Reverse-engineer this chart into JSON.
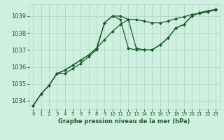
{
  "title": "Graphe pression niveau de la mer (hPa)",
  "background_color": "#cff0e0",
  "grid_color": "#b0d8c4",
  "line_color": "#1a5c2a",
  "marker_color": "#1a5c2a",
  "xlim": [
    -0.5,
    23.5
  ],
  "ylim": [
    1033.5,
    1039.7
  ],
  "yticks": [
    1034,
    1035,
    1036,
    1037,
    1038,
    1039
  ],
  "xticks": [
    0,
    1,
    2,
    3,
    4,
    5,
    6,
    7,
    8,
    9,
    10,
    11,
    12,
    13,
    14,
    15,
    16,
    17,
    18,
    19,
    20,
    21,
    22,
    23
  ],
  "series": [
    [
      1033.7,
      1034.4,
      1034.9,
      1035.6,
      1035.6,
      1035.9,
      1036.2,
      1036.6,
      1037.0,
      1038.6,
      1039.0,
      1039.0,
      1038.8,
      1037.1,
      1037.0,
      1037.0,
      1037.3,
      1037.7,
      1038.3,
      1038.5,
      1039.0,
      1039.2,
      1039.3,
      1039.4
    ],
    [
      1033.7,
      1034.4,
      1034.9,
      1035.6,
      1035.8,
      1036.1,
      1036.4,
      1036.7,
      1037.1,
      1037.6,
      1038.1,
      1038.5,
      1038.8,
      1038.8,
      1038.7,
      1038.6,
      1038.6,
      1038.7,
      1038.85,
      1038.95,
      1039.1,
      1039.15,
      1039.25,
      1039.35
    ],
    [
      1033.7,
      1034.4,
      1034.9,
      1035.6,
      1035.8,
      1036.1,
      1036.4,
      1036.7,
      1037.1,
      1038.6,
      1039.0,
      1038.8,
      1037.1,
      1037.0,
      1037.0,
      1037.0,
      1037.3,
      1037.7,
      1038.3,
      1038.5,
      1039.0,
      1039.2,
      1039.3,
      1039.35
    ]
  ]
}
